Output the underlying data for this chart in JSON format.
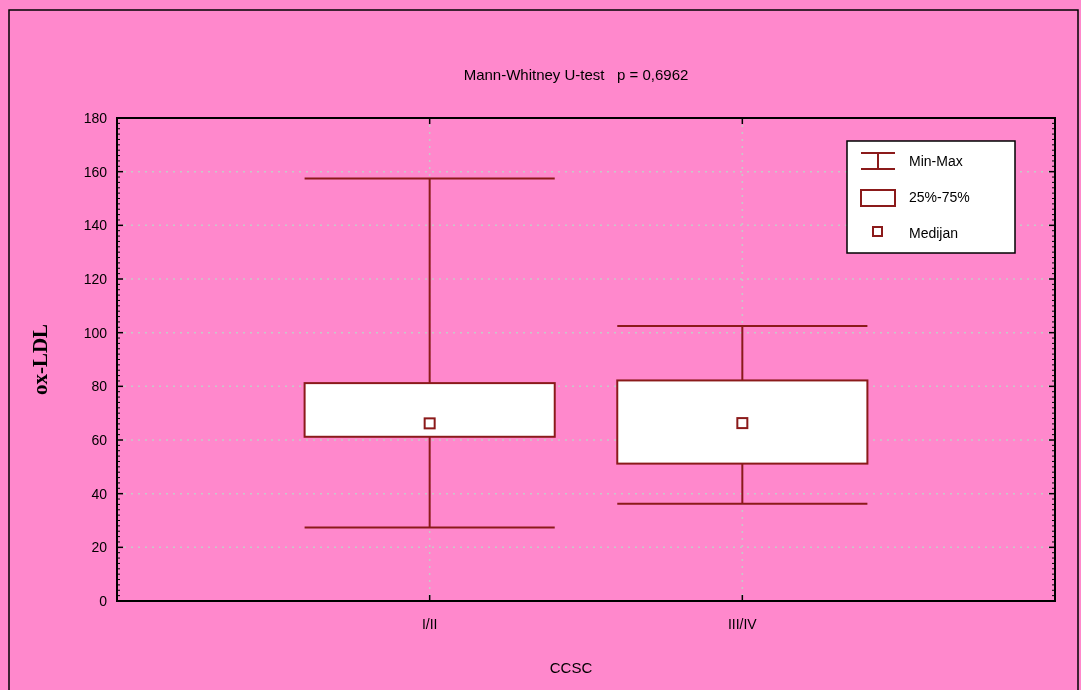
{
  "chart_data": {
    "type": "box",
    "title": "Mann-Whitney U-test   p = 0,6962",
    "xlabel": "CCSC",
    "ylabel": "ox-LDL",
    "categories": [
      "I/II",
      "III/IV"
    ],
    "series": [
      {
        "color": "#8b1a1a",
        "boxes": [
          {
            "low": 27.4,
            "q1": 61.2,
            "median": 66.2,
            "q3": 81.2,
            "high": 157.5
          },
          {
            "low": 36.2,
            "q1": 51.2,
            "median": 66.3,
            "q3": 82.2,
            "high": 102.5
          }
        ]
      }
    ],
    "annotations": [
      "Min-Max",
      "25%-75%",
      "Medijan"
    ],
    "ylim": [
      0,
      180
    ],
    "yticks": [
      0,
      20,
      40,
      60,
      80,
      100,
      120,
      140,
      160,
      180
    ],
    "grid": true
  }
}
